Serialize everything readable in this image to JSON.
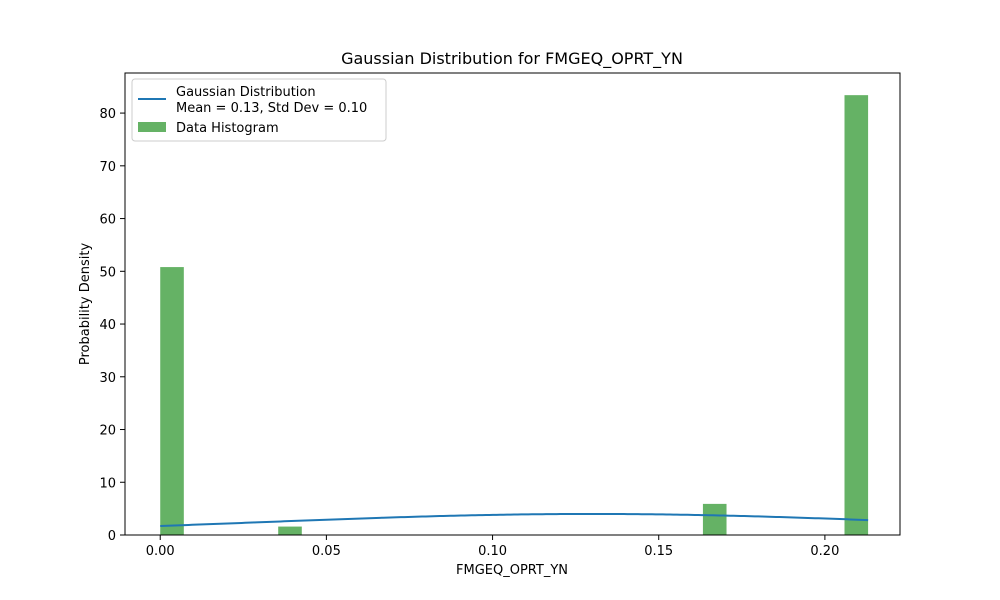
{
  "chart_data": {
    "type": "bar",
    "title": "Gaussian Distribution for FMGEQ_OPRT_YN",
    "xlabel": "FMGEQ_OPRT_YN",
    "ylabel": "Probability Density",
    "xlim": [
      -0.0106,
      0.2226
    ],
    "ylim": [
      0,
      87.6
    ],
    "xticks": [
      0.0,
      0.05,
      0.1,
      0.15,
      0.2
    ],
    "xtick_labels": [
      "0.00",
      "0.05",
      "0.10",
      "0.15",
      "0.20"
    ],
    "yticks": [
      0,
      10,
      20,
      30,
      40,
      50,
      60,
      70,
      80
    ],
    "ytick_labels": [
      "0",
      "10",
      "20",
      "30",
      "40",
      "50",
      "60",
      "70",
      "80"
    ],
    "grid": false,
    "legend_position": "top-left",
    "bar_color": "#4aa54a",
    "line_color": "#1f77b4",
    "histogram": {
      "name": "Data Histogram",
      "bins": [
        {
          "x0": 0.0,
          "x1": 0.0071,
          "value": 50.8
        },
        {
          "x0": 0.0355,
          "x1": 0.0426,
          "value": 1.6
        },
        {
          "x0": 0.1633,
          "x1": 0.1704,
          "value": 5.9
        },
        {
          "x0": 0.2059,
          "x1": 0.213,
          "value": 83.4
        }
      ]
    },
    "gaussian": {
      "name_lines": [
        "Gaussian Distribution",
        "Mean = 0.13, Std Dev = 0.10"
      ],
      "mean": 0.13,
      "std": 0.1,
      "scale": 1.0,
      "x_range": [
        0.0,
        0.213
      ]
    }
  }
}
